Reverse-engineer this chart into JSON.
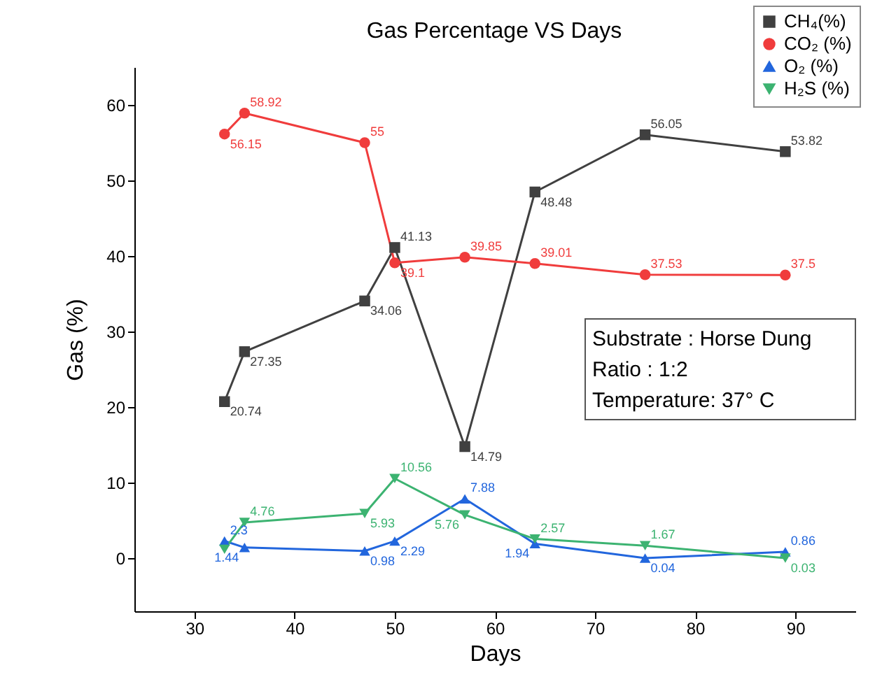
{
  "chart_data": {
    "type": "line",
    "title": "Gas Percentage VS Days",
    "xlabel": "Days",
    "ylabel": "Gas (%)",
    "x": [
      33,
      35,
      47,
      50,
      57,
      64,
      75,
      89
    ],
    "xlim": [
      24,
      96
    ],
    "xticks": [
      30,
      40,
      50,
      60,
      70,
      80,
      90
    ],
    "ylim": [
      -7,
      65
    ],
    "yticks": [
      0,
      10,
      20,
      30,
      40,
      50,
      60
    ],
    "grid": false,
    "legend": "top right",
    "line_style": "solid",
    "series": [
      {
        "name": "CH₄(%)",
        "color": "#404040",
        "marker": "square",
        "values": [
          20.74,
          27.35,
          34.06,
          41.13,
          14.79,
          48.48,
          56.05,
          53.82
        ],
        "value_labels": [
          "20.74",
          "27.35",
          "34.06",
          "41.13",
          "14.79",
          "48.48",
          "56.05",
          "53.82"
        ]
      },
      {
        "name": "CO₂ (%)",
        "color": "#f03c3c",
        "marker": "circle",
        "values": [
          56.15,
          58.92,
          55,
          39.1,
          39.85,
          39.01,
          37.53,
          37.5
        ],
        "value_labels": [
          "56.15",
          "58.92",
          "55",
          "39.1",
          "39.85",
          "39.01",
          "37.53",
          "37.5"
        ]
      },
      {
        "name": "O₂ (%)",
        "color": "#2266dd",
        "marker": "triangle",
        "values": [
          2.3,
          1.44,
          0.98,
          2.29,
          7.88,
          1.94,
          0.04,
          0.86
        ],
        "value_labels": [
          "2.3",
          "1.44",
          "0.98",
          "2.29",
          "7.88",
          "1.94",
          "0.04",
          "0.86"
        ]
      },
      {
        "name": "H₂S (%)",
        "color": "#3cb371",
        "marker": "triangle-down",
        "values": [
          1.2,
          4.76,
          5.93,
          10.56,
          5.76,
          2.57,
          1.67,
          0.03
        ],
        "value_labels": [
          null,
          "4.76",
          "5.93",
          "10.56",
          "5.76",
          "2.57",
          "1.67",
          "0.03"
        ]
      }
    ],
    "annotations": [
      "Substrate      : Horse Dung",
      "Ratio               : 1:2",
      "Temperature: 37° C"
    ]
  }
}
